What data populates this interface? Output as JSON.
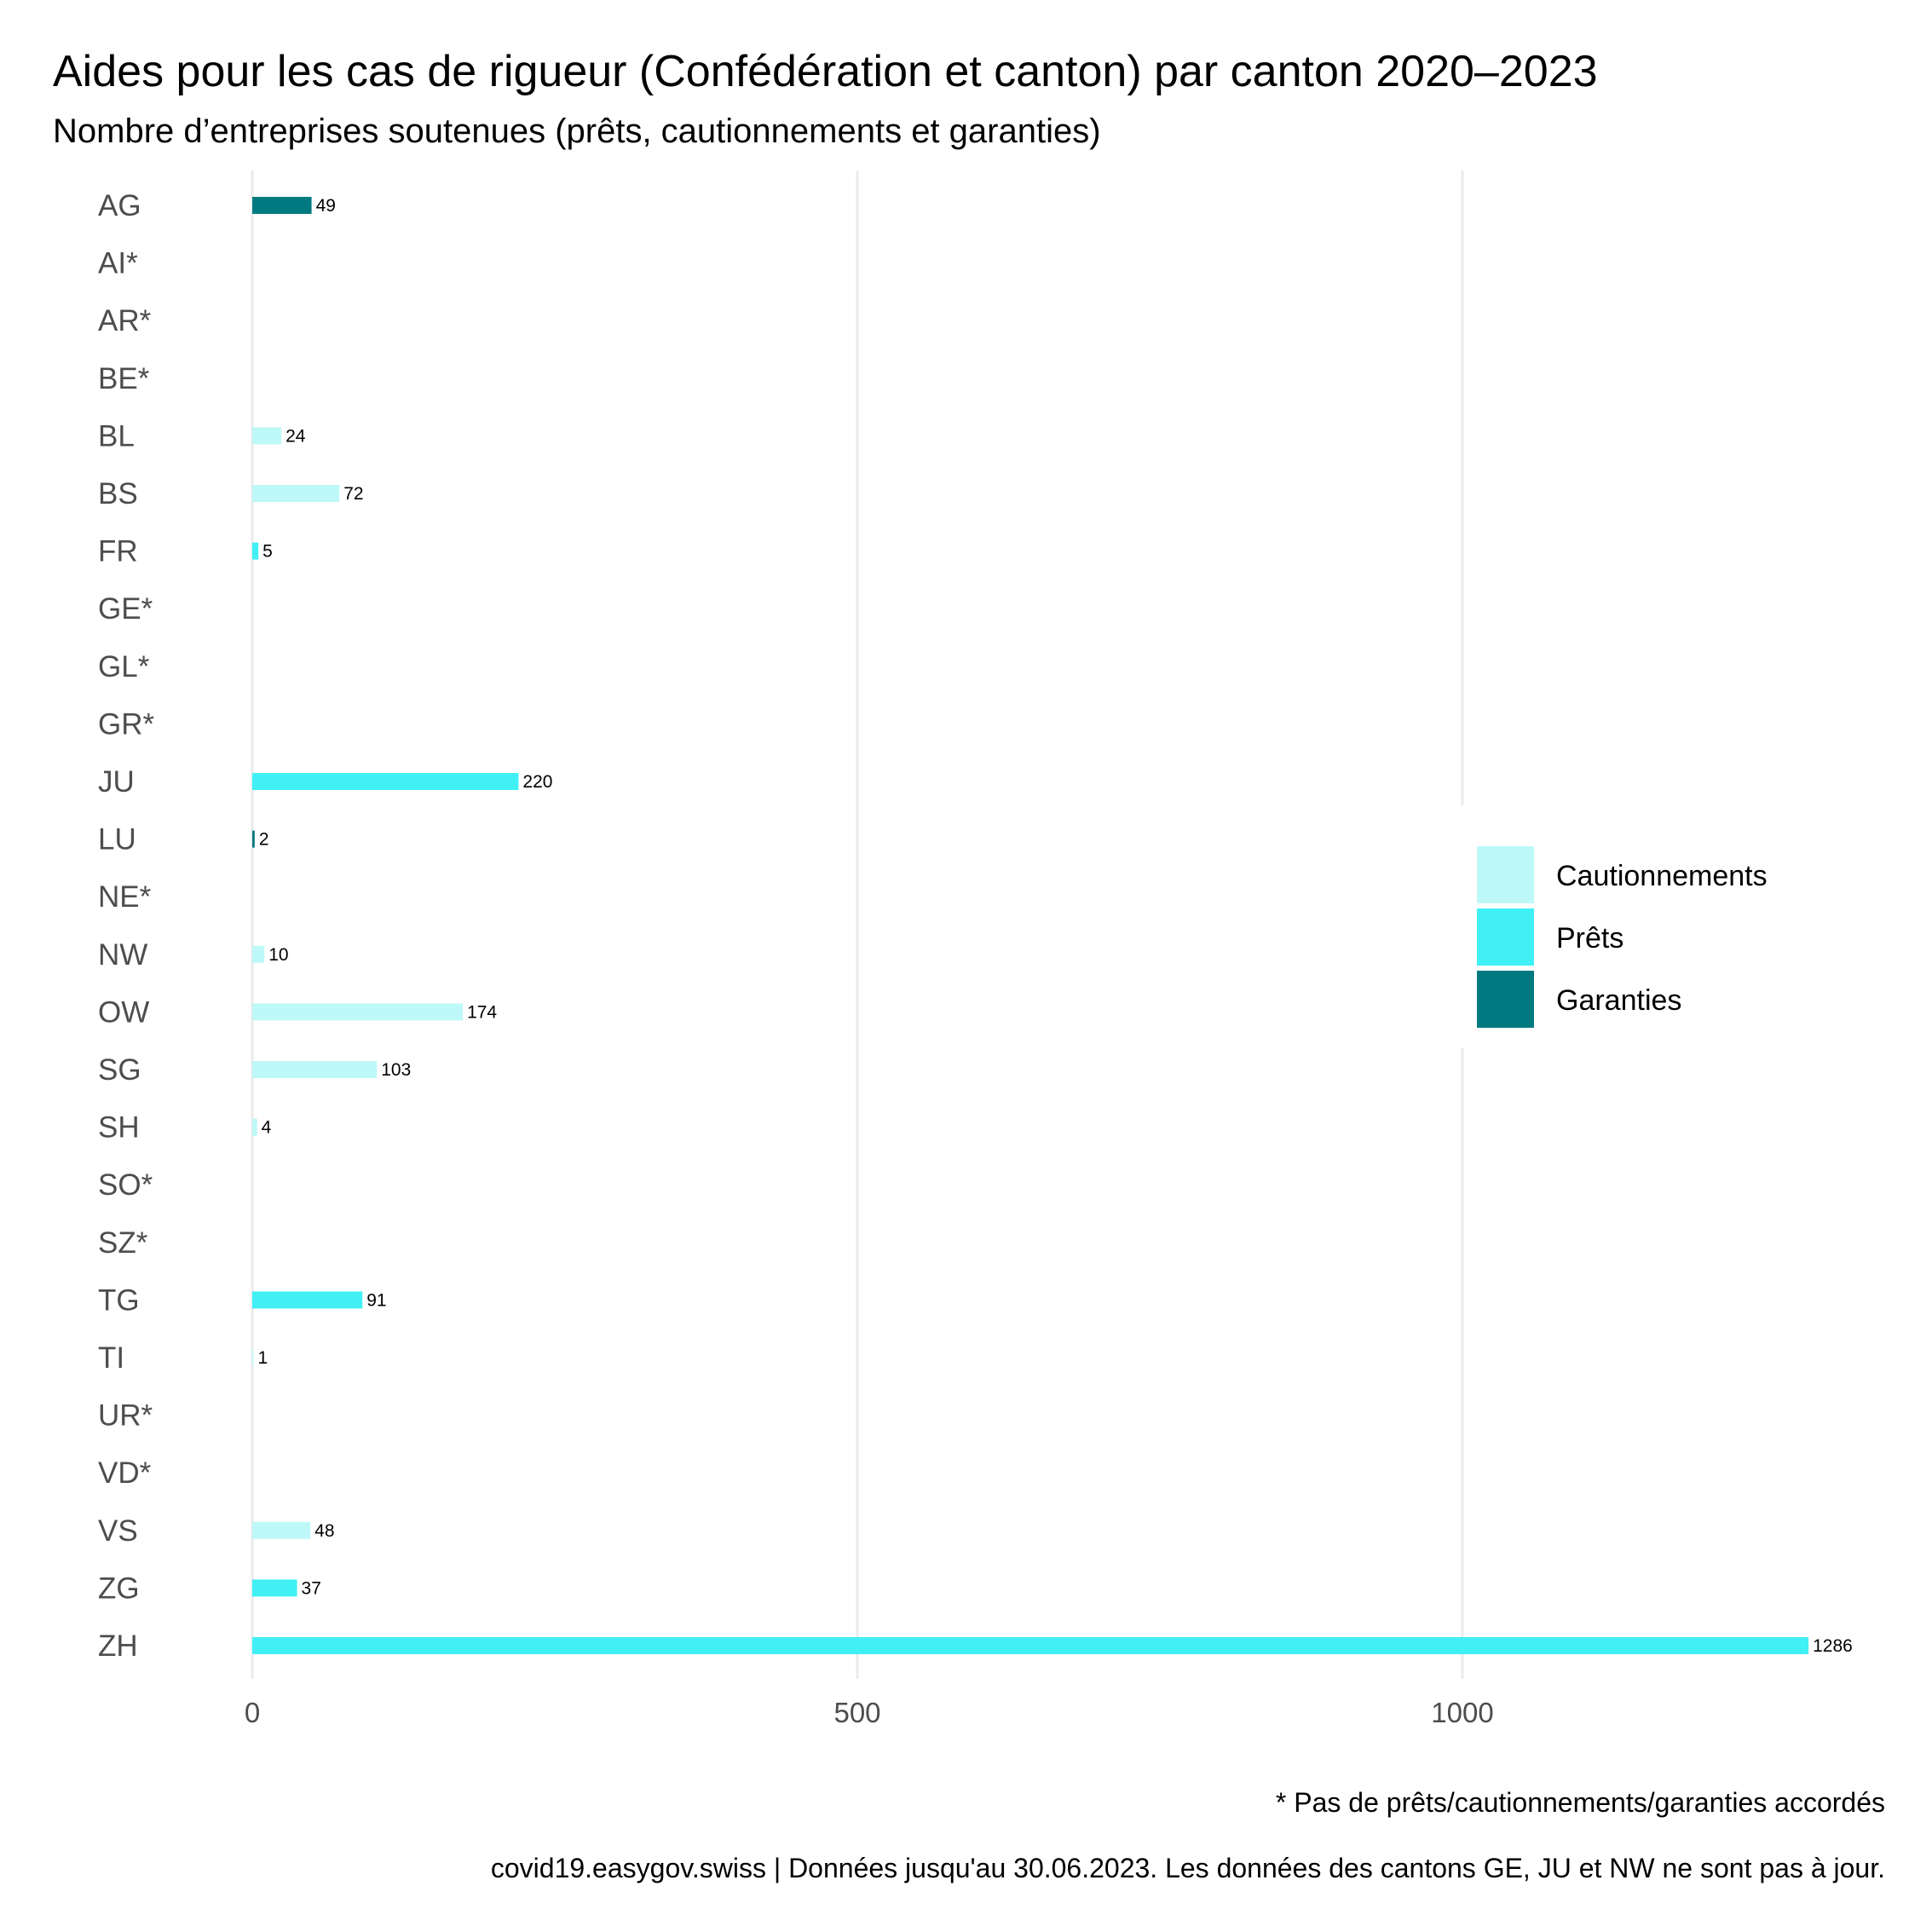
{
  "chart_data": {
    "type": "bar",
    "orientation": "horizontal",
    "title": "Aides pour les cas de rigueur (Confédération et canton) par canton 2020–2023",
    "subtitle": "Nombre d’entreprises soutenues (prêts, cautionnements et garanties)",
    "xlabel": "",
    "ylabel": "",
    "xlim": [
      0,
      1300
    ],
    "x_ticks": [
      0,
      500,
      1000
    ],
    "x_tick_labels": [
      "0",
      "500",
      "1000"
    ],
    "grid": "vertical major gridlines",
    "legend_position": "right",
    "categories": [
      "AG",
      "AI*",
      "AR*",
      "BE*",
      "BL",
      "BS",
      "FR",
      "GE*",
      "GL*",
      "GR*",
      "JU",
      "LU",
      "NE*",
      "NW",
      "OW",
      "SG",
      "SH",
      "SO*",
      "SZ*",
      "TG",
      "TI",
      "UR*",
      "VD*",
      "VS",
      "ZG",
      "ZH"
    ],
    "series": [
      {
        "name": "Cautionnements",
        "color": "#BEF8F8",
        "values": [
          null,
          null,
          null,
          null,
          24,
          72,
          null,
          null,
          null,
          null,
          null,
          null,
          null,
          10,
          174,
          103,
          4,
          null,
          null,
          null,
          1,
          null,
          null,
          48,
          null,
          null
        ]
      },
      {
        "name": "Prêts",
        "color": "#40F0F5",
        "values": [
          null,
          null,
          null,
          null,
          null,
          null,
          5,
          null,
          null,
          null,
          220,
          null,
          null,
          null,
          null,
          null,
          null,
          null,
          null,
          91,
          null,
          null,
          null,
          null,
          37,
          1286
        ]
      },
      {
        "name": "Garanties",
        "color": "#007A80",
        "values": [
          49,
          null,
          null,
          null,
          null,
          null,
          null,
          null,
          null,
          null,
          null,
          2,
          null,
          null,
          null,
          null,
          null,
          null,
          null,
          null,
          null,
          null,
          null,
          null,
          null,
          null
        ]
      }
    ],
    "captions": [
      "* Pas de prêts/cautionnements/garanties accordés",
      "covid19.easygov.swiss | Données jusqu'au 30.06.2023. Les données des cantons GE, JU et NW ne sont pas à jour."
    ]
  }
}
